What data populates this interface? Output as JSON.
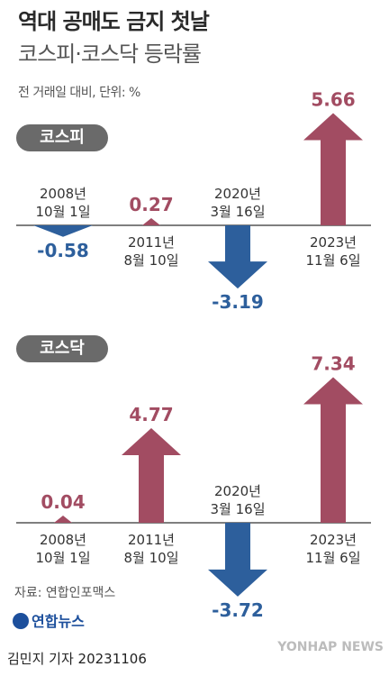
{
  "title": "역대 공매도 금지 첫날",
  "subtitle": "코스피·코스닥 등락률",
  "unit_note": "전 거래일 대비, 단위: %",
  "source": "자료: 연합인포맥스",
  "logo_text": "연합뉴스",
  "credit": "김민지 기자  20231106",
  "watermark": "YONHAP NEWS",
  "colors": {
    "up": "#a24c62",
    "down": "#2d5f9c",
    "axis": "#333333",
    "pill": "#6a6a6a"
  },
  "chart_data": [
    {
      "type": "bar",
      "label": "코스피",
      "categories": [
        [
          "2008년",
          "10월 1일"
        ],
        [
          "2011년",
          "8월 10일"
        ],
        [
          "2020년",
          "3월 16일"
        ],
        [
          "2023년",
          "11월 6일"
        ]
      ],
      "values": [
        -0.58,
        0.27,
        -3.19,
        5.66
      ],
      "value_labels": [
        "-0.58",
        "0.27",
        "-3.19",
        "5.66"
      ],
      "xlabel": "",
      "ylabel": ""
    },
    {
      "type": "bar",
      "label": "코스닥",
      "categories": [
        [
          "2008년",
          "10월 1일"
        ],
        [
          "2011년",
          "8월 10일"
        ],
        [
          "2020년",
          "3월 16일"
        ],
        [
          "2023년",
          "11월 6일"
        ]
      ],
      "values": [
        0.04,
        4.77,
        -3.72,
        7.34
      ],
      "value_labels": [
        "0.04",
        "4.77",
        "-3.72",
        "7.34"
      ],
      "xlabel": "",
      "ylabel": ""
    }
  ]
}
